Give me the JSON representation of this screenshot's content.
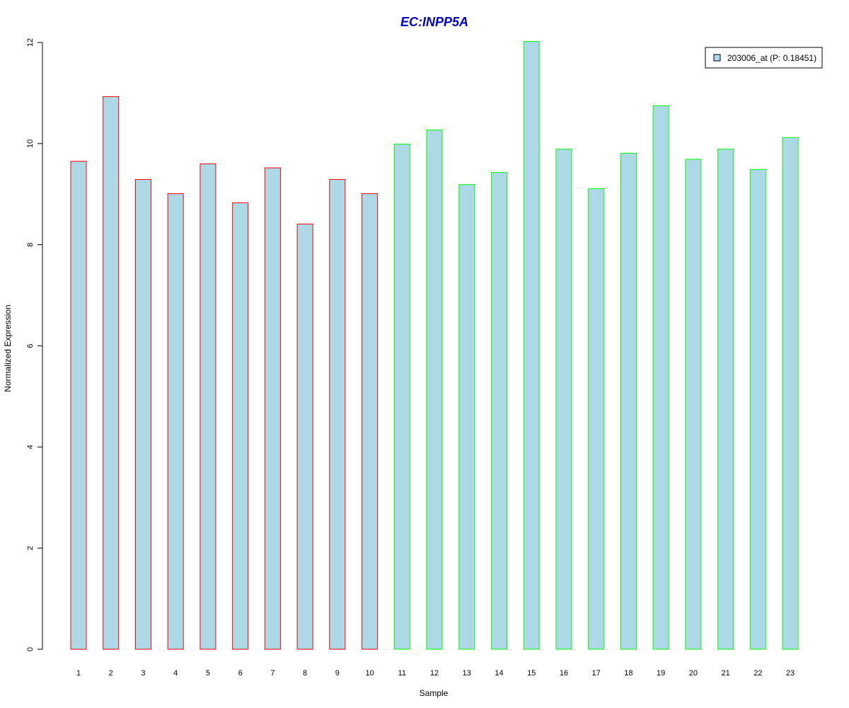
{
  "chart_data": {
    "type": "bar",
    "title": "EC:INPP5A",
    "xlabel": "Sample",
    "ylabel": "Normalized Expression",
    "categories": [
      "1",
      "2",
      "3",
      "4",
      "5",
      "6",
      "7",
      "8",
      "9",
      "10",
      "11",
      "12",
      "13",
      "14",
      "15",
      "16",
      "17",
      "18",
      "19",
      "20",
      "21",
      "22",
      "23"
    ],
    "series": [
      {
        "name": "203006_at (P: 0.18451)",
        "values": [
          9.65,
          10.93,
          9.29,
          9.01,
          9.6,
          8.83,
          9.52,
          8.41,
          9.29,
          9.01,
          9.99,
          10.27,
          9.19,
          9.43,
          12.02,
          9.89,
          9.11,
          9.81,
          10.75,
          9.69,
          9.89,
          9.49,
          10.12
        ]
      }
    ],
    "bar_fill": "#add8e6",
    "bar_borders": [
      "#ff0000",
      "#ff0000",
      "#ff0000",
      "#ff0000",
      "#ff0000",
      "#ff0000",
      "#ff0000",
      "#ff0000",
      "#ff0000",
      "#ff0000",
      "#00ff00",
      "#00ff00",
      "#00ff00",
      "#00ff00",
      "#00ff00",
      "#00ff00",
      "#00ff00",
      "#00ff00",
      "#00ff00",
      "#00ff00",
      "#00ff00",
      "#00ff00",
      "#00ff00"
    ],
    "title_color": "#0000cc",
    "ylim": [
      0,
      12
    ],
    "yticks": [
      "0",
      "2",
      "4",
      "6",
      "8",
      "10",
      "12"
    ],
    "grid": false,
    "legend_position": "top-right"
  }
}
